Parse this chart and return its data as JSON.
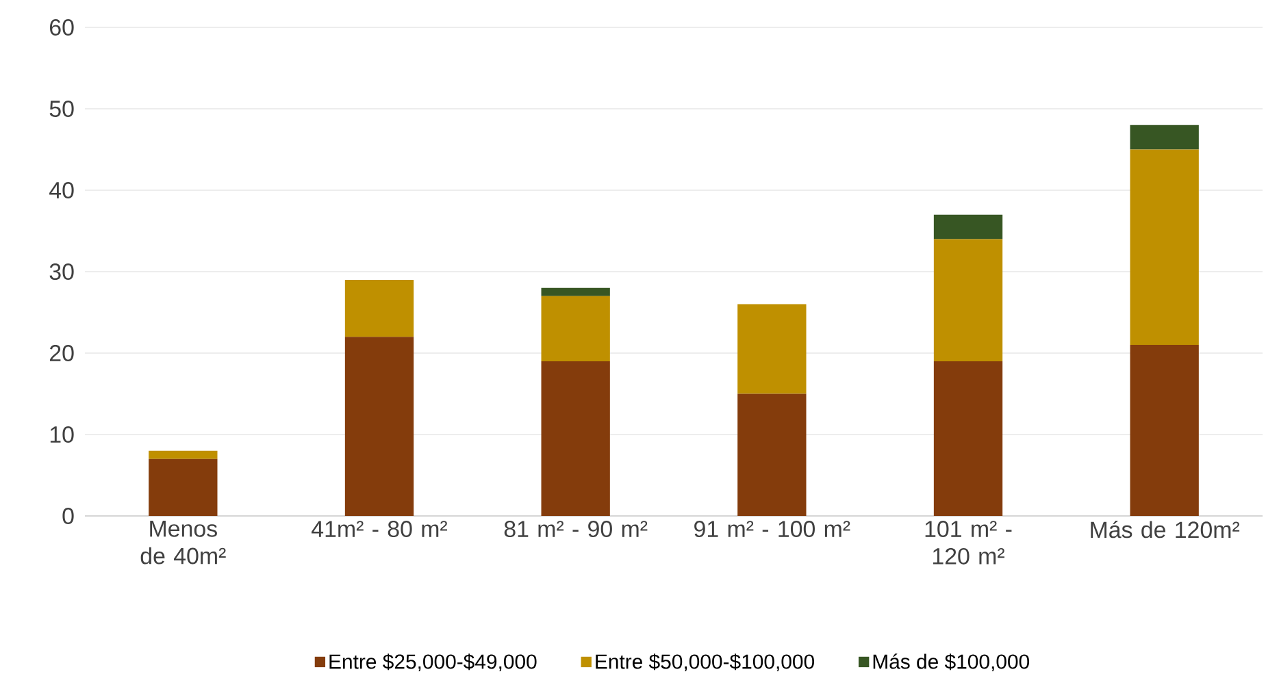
{
  "chart_data": {
    "type": "bar",
    "stacked": true,
    "categories": [
      "Menos de 40m²",
      "41m² - 80 m²",
      "81 m² - 90 m²",
      "91 m² - 100 m²",
      "101 m² - 120 m²",
      "Más de 120m²"
    ],
    "series": [
      {
        "name": "Entre $25,000-$49,000",
        "color": "#843c0c",
        "values": [
          7,
          22,
          19,
          15,
          19,
          21
        ]
      },
      {
        "name": "Entre $50,000-$100,000",
        "color": "#bf9000",
        "values": [
          1,
          7,
          8,
          11,
          15,
          24
        ]
      },
      {
        "name": "Más de $100,000",
        "color": "#375623",
        "values": [
          0,
          0,
          1,
          0,
          3,
          3
        ]
      }
    ],
    "ylim": [
      0,
      60
    ],
    "yticks": [
      0,
      10,
      20,
      30,
      40,
      50,
      60
    ],
    "grid": "y",
    "legend": "bottom"
  }
}
